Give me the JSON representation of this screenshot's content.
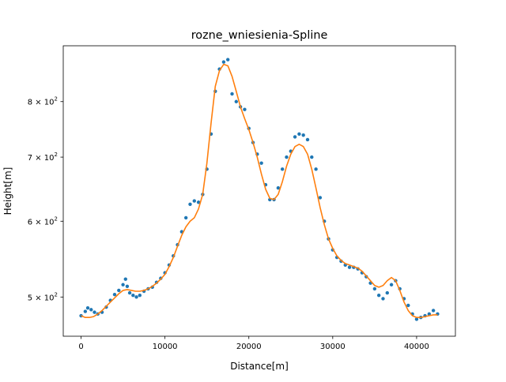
{
  "chart_data": {
    "type": "scatter",
    "title": "rozne_wniesienia-Spline",
    "xlabel": "Distance[m]",
    "ylabel": "Height[m]",
    "xlim": [
      -2125,
      44625
    ],
    "ylim": [
      455,
      915
    ],
    "y_scale": "log",
    "grid": false,
    "legend": "none",
    "x_ticks": [
      0,
      10000,
      20000,
      30000,
      40000
    ],
    "x_tick_labels": [
      "0",
      "10000",
      "20000",
      "30000",
      "40000"
    ],
    "y_ticks": [
      500,
      600,
      700,
      800
    ],
    "y_tick_labels": [
      "5",
      "6",
      "7",
      "8"
    ],
    "y_tick_label_base": "× 10",
    "y_tick_label_exponent": "2",
    "series": [
      {
        "kind": "scatter",
        "color": "#1f77b4",
        "x": [
          0,
          500,
          800,
          1200,
          1600,
          2000,
          2500,
          3000,
          3500,
          4000,
          4500,
          5000,
          5300,
          5500,
          5800,
          6200,
          6600,
          7000,
          7500,
          8000,
          8500,
          9000,
          9500,
          10000,
          10500,
          11000,
          11500,
          12000,
          12500,
          13000,
          13500,
          14000,
          14500,
          15000,
          15500,
          16000,
          16500,
          17000,
          17500,
          18000,
          18500,
          19000,
          19500,
          20000,
          20500,
          21000,
          21500,
          22000,
          22500,
          23000,
          23500,
          24000,
          24500,
          25000,
          25500,
          26000,
          26500,
          27000,
          27500,
          28000,
          28500,
          29000,
          29500,
          30000,
          30500,
          31000,
          31500,
          32000,
          32500,
          33000,
          33500,
          34000,
          34500,
          35000,
          35500,
          36000,
          36500,
          37000,
          37500,
          38000,
          38500,
          39000,
          39500,
          40000,
          40500,
          41000,
          41500,
          42000,
          42500
        ],
        "y": [
          478,
          483,
          487,
          485,
          482,
          480,
          482,
          488,
          496,
          503,
          508,
          515,
          522,
          513,
          505,
          502,
          500,
          502,
          507,
          510,
          512,
          518,
          523,
          530,
          540,
          552,
          567,
          585,
          605,
          625,
          630,
          628,
          640,
          680,
          740,
          820,
          865,
          880,
          885,
          815,
          800,
          790,
          785,
          750,
          725,
          705,
          690,
          655,
          632,
          632,
          650,
          680,
          700,
          710,
          735,
          740,
          738,
          730,
          700,
          680,
          635,
          600,
          575,
          560,
          550,
          545,
          540,
          537,
          537,
          535,
          530,
          525,
          517,
          510,
          502,
          498,
          505,
          515,
          520,
          510,
          498,
          490,
          480,
          474,
          476,
          478,
          480,
          484,
          480
        ]
      },
      {
        "kind": "line",
        "color": "#ff7f0e",
        "x": [
          0,
          500,
          1000,
          1500,
          2000,
          2500,
          3000,
          3500,
          4000,
          4500,
          5000,
          5500,
          6000,
          6500,
          7000,
          7500,
          8000,
          8500,
          9000,
          9500,
          10000,
          10500,
          11000,
          11500,
          12000,
          12500,
          13000,
          13500,
          14000,
          14500,
          15000,
          15500,
          16000,
          16500,
          17000,
          17500,
          18000,
          18500,
          19000,
          19500,
          20000,
          20500,
          21000,
          21500,
          22000,
          22500,
          23000,
          23500,
          24000,
          24500,
          25000,
          25500,
          26000,
          26500,
          27000,
          27500,
          28000,
          28500,
          29000,
          29500,
          30000,
          30500,
          31000,
          31500,
          32000,
          32500,
          33000,
          33500,
          34000,
          34500,
          35000,
          35500,
          36000,
          36500,
          37000,
          37500,
          38000,
          38500,
          39000,
          39500,
          40000,
          40500,
          41000,
          41500,
          42000,
          42500
        ],
        "y": [
          478,
          476,
          476,
          477,
          480,
          484,
          489,
          494,
          499,
          504,
          508,
          509,
          508,
          507,
          507,
          508,
          510,
          513,
          517,
          522,
          528,
          538,
          550,
          565,
          580,
          592,
          600,
          605,
          618,
          640,
          690,
          760,
          830,
          862,
          875,
          872,
          850,
          820,
          790,
          768,
          748,
          725,
          700,
          672,
          648,
          634,
          632,
          640,
          660,
          685,
          705,
          718,
          722,
          718,
          705,
          680,
          650,
          620,
          595,
          575,
          562,
          552,
          546,
          542,
          540,
          538,
          536,
          532,
          526,
          520,
          514,
          512,
          514,
          520,
          524,
          520,
          508,
          494,
          484,
          478,
          476,
          476,
          477,
          478,
          479,
          479
        ]
      }
    ]
  }
}
